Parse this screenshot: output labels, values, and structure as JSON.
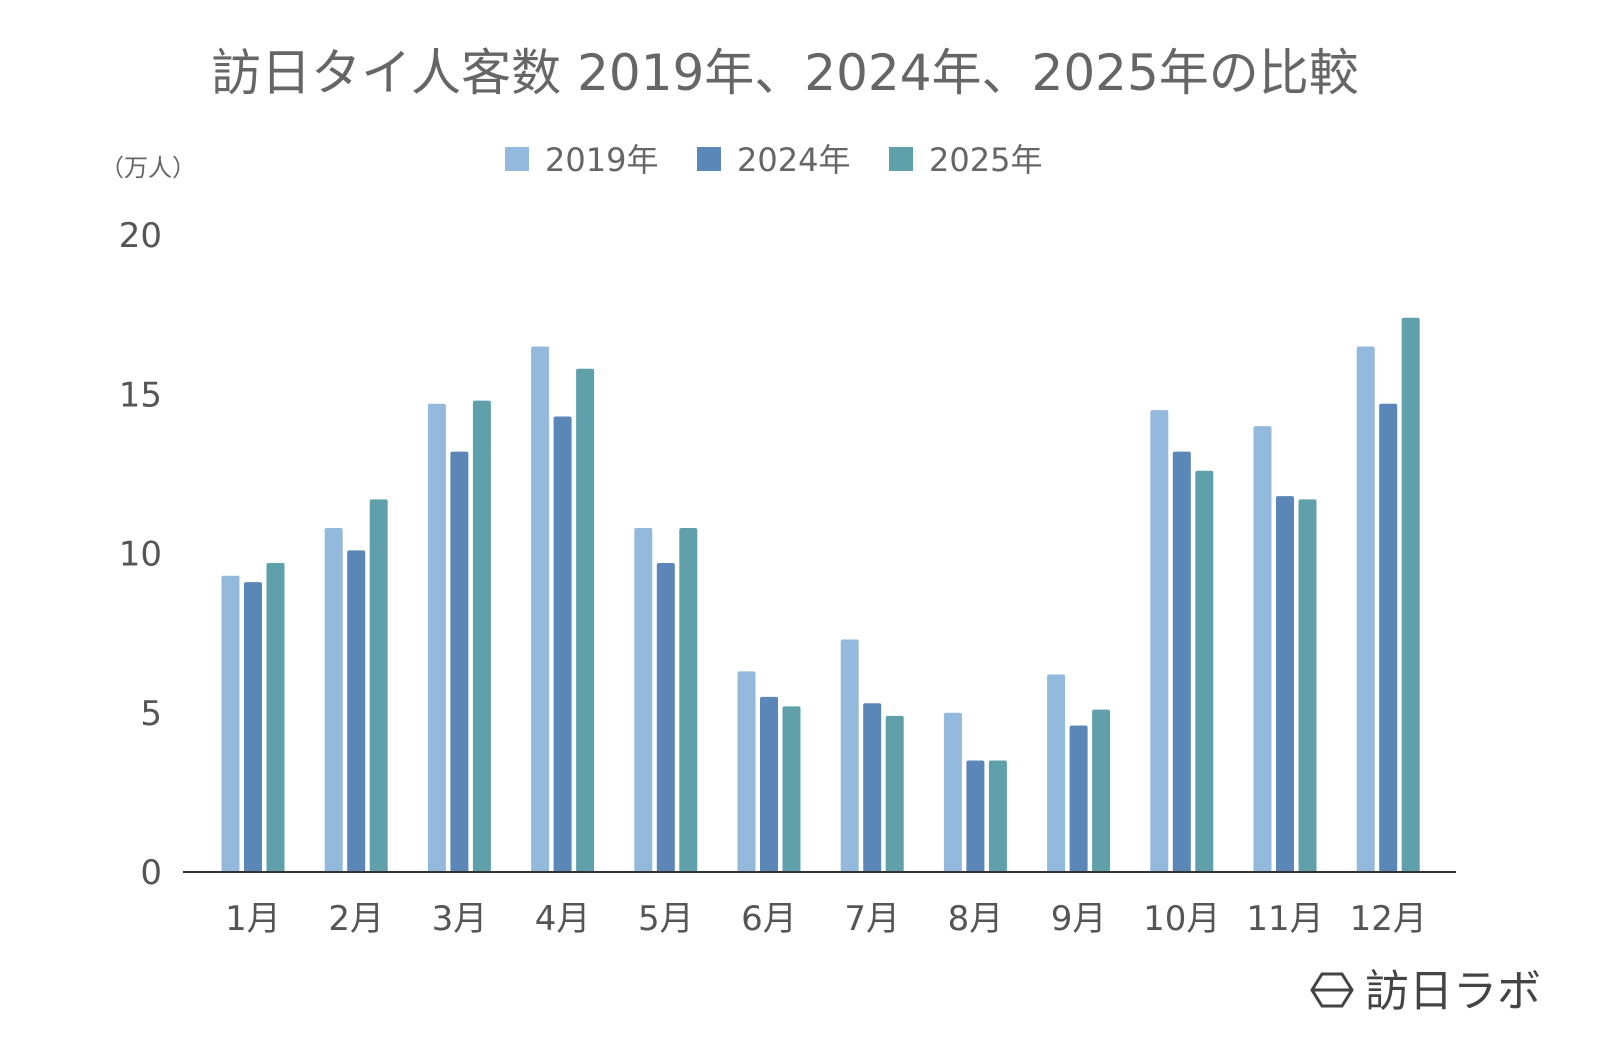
{
  "chart_data": {
    "type": "bar",
    "title": "訪日タイ人客数 2019年、2024年、2025年の比較",
    "ylabel": "（万人）",
    "xlabel": "",
    "ylim": [
      0,
      20
    ],
    "yticks": [
      "0",
      "5",
      "10",
      "15",
      "20"
    ],
    "grid": false,
    "legend_position": "top",
    "categories": [
      "1月",
      "2月",
      "3月",
      "4月",
      "5月",
      "6月",
      "7月",
      "8月",
      "9月",
      "10月",
      "11月",
      "12月"
    ],
    "series": [
      {
        "name": "2019年",
        "color": "#93b9dc",
        "values": [
          9.3,
          10.8,
          14.7,
          16.5,
          10.8,
          6.3,
          7.3,
          5.0,
          6.2,
          14.5,
          14.0,
          16.5
        ]
      },
      {
        "name": "2024年",
        "color": "#5b86b8",
        "values": [
          9.1,
          10.1,
          13.2,
          14.3,
          9.7,
          5.5,
          5.3,
          3.5,
          4.6,
          13.2,
          11.8,
          14.7
        ]
      },
      {
        "name": "2025年",
        "color": "#5fa0ab",
        "values": [
          9.7,
          11.7,
          14.8,
          15.8,
          10.8,
          5.2,
          4.9,
          3.5,
          5.1,
          12.6,
          11.7,
          17.4
        ]
      }
    ]
  },
  "watermark": {
    "text": "訪日ラボ"
  }
}
